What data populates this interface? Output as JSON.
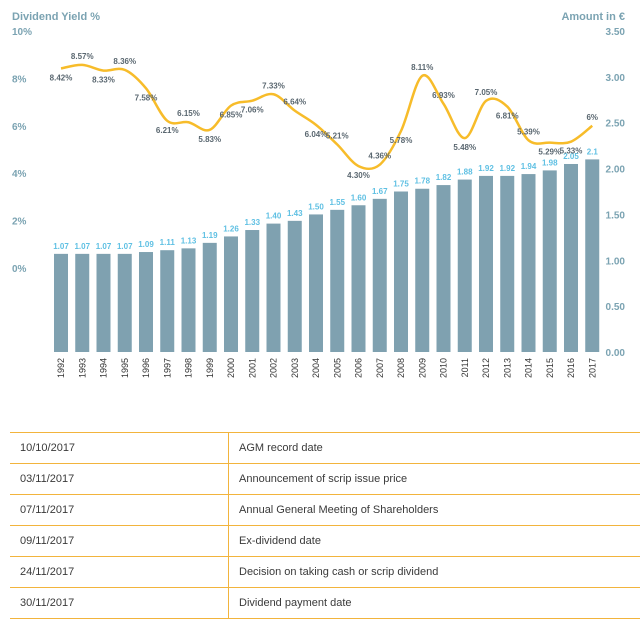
{
  "colors": {
    "bar": "#7fa1b0",
    "line": "#f7bc2a",
    "axis_text": "#7ba3b2",
    "bar_label": "#5fc0e3",
    "rule": "#f2b43d"
  },
  "chart_data": {
    "type": "bar+line",
    "left_axis_title": "Dividend Yield %",
    "right_axis_title": "Amount in €",
    "left_ticks": [
      "10%",
      "8%",
      "6%",
      "4%",
      "2%",
      "0%"
    ],
    "right_ticks": [
      "3.50",
      "3.00",
      "2.50",
      "2.00",
      "1.50",
      "1.00",
      "0.50",
      "0.00"
    ],
    "ylim_amount": [
      0,
      3.5
    ],
    "ylim_yield": [
      0,
      10
    ],
    "categories": [
      "1992",
      "1993",
      "1994",
      "1995",
      "1996",
      "1997",
      "1998",
      "1999",
      "2000",
      "2001",
      "2002",
      "2003",
      "2004",
      "2005",
      "2006",
      "2007",
      "2008",
      "2009",
      "2010",
      "2011",
      "2012",
      "2013",
      "2014",
      "2015",
      "2016",
      "2017"
    ],
    "amount": [
      1.07,
      1.07,
      1.07,
      1.07,
      1.09,
      1.11,
      1.13,
      1.19,
      1.26,
      1.33,
      1.4,
      1.43,
      1.5,
      1.55,
      1.6,
      1.67,
      1.75,
      1.78,
      1.82,
      1.88,
      1.92,
      1.92,
      1.94,
      1.98,
      2.05,
      2.1
    ],
    "amount_labels": [
      "1.07",
      "1.07",
      "1.07",
      "1.07",
      "1.09",
      "1.11",
      "1.13",
      "1.19",
      "1.26",
      "1.33",
      "1.40",
      "1.43",
      "1.50",
      "1.55",
      "1.60",
      "1.67",
      "1.75",
      "1.78",
      "1.82",
      "1.88",
      "1.92",
      "1.92",
      "1.94",
      "1.98",
      "2.05",
      "2.1"
    ],
    "yield": [
      8.42,
      8.57,
      8.33,
      8.36,
      7.58,
      6.21,
      6.15,
      5.83,
      6.85,
      7.06,
      7.33,
      6.64,
      6.04,
      5.21,
      4.3,
      4.36,
      5.78,
      8.11,
      6.93,
      5.48,
      7.05,
      6.81,
      5.39,
      5.29,
      5.33,
      6
    ],
    "yield_labels": [
      "8.42%",
      "8.57%",
      "8.33%",
      "8.36%",
      "7.58%",
      "6.21%",
      "6.15%",
      "5.83%",
      "6.85%",
      "7.06%",
      "7.33%",
      "6.64%",
      "6.04%",
      "5.21%",
      "4.30%",
      "4.36%",
      "5.78%",
      "8.11%",
      "6.93%",
      "5.48%",
      "7.05%",
      "6.81%",
      "5.39%",
      "5.29%",
      "5.33%",
      "6%"
    ],
    "grid": false,
    "legend": "none"
  },
  "calendar": [
    {
      "date": "10/10/2017",
      "event": "AGM record date"
    },
    {
      "date": "03/11/2017",
      "event": "Announcement of scrip issue price"
    },
    {
      "date": "07/11/2017",
      "event": "Annual General Meeting of Shareholders"
    },
    {
      "date": "09/11/2017",
      "event": "Ex-dividend date"
    },
    {
      "date": "24/11/2017",
      "event": "Decision on taking cash or scrip dividend"
    },
    {
      "date": "30/11/2017",
      "event": "Dividend payment date"
    }
  ]
}
